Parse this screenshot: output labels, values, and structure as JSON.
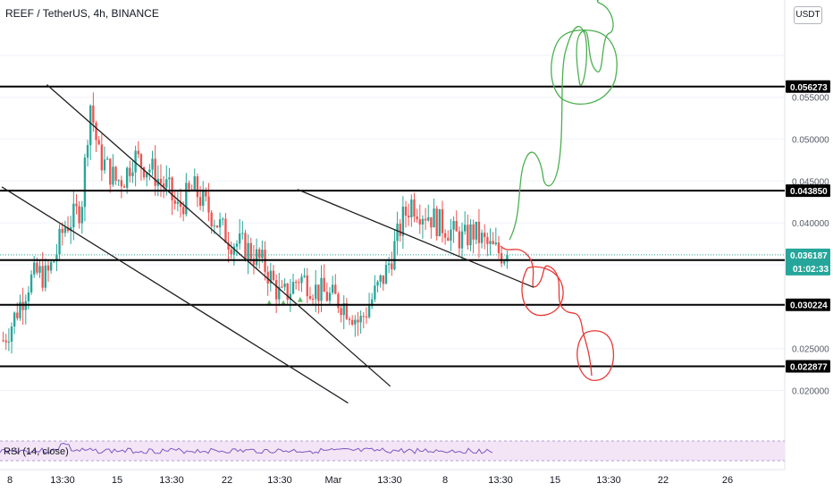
{
  "title": "REEF / TetherUS, 4h, BINANCE",
  "currency_button": "USDT",
  "rsi_label": "RSI (14, close)",
  "colors": {
    "up": "#26a69a",
    "down": "#ef5350",
    "level_line": "#000000",
    "green_drawing": "#4caf50",
    "red_drawing": "#e53935",
    "current_price": "#26a69a",
    "rsi_line": "#7e57c2",
    "rsi_band": "#f3e5f5"
  },
  "chart_data": {
    "type": "candlestick",
    "symbol": "REEF/USDT",
    "interval": "4h",
    "exchange": "BINANCE",
    "y_range": [
      0.0145,
      0.0665
    ],
    "price_axis_ticks": [
      "0.055000",
      "0.050000",
      "0.045000",
      "0.040000",
      "0.025000",
      "0.020000"
    ],
    "time_axis_ticks": [
      "8",
      "13:30",
      "15",
      "13:30",
      "22",
      "13:30",
      "Mar",
      "13:30",
      "8",
      "13:30",
      "15",
      "13:30",
      "22",
      "26"
    ],
    "horizontal_levels": [
      {
        "value": 0.056273,
        "label": "0.056273"
      },
      {
        "value": 0.04385,
        "label": "0.043850"
      },
      {
        "value": 0.035568,
        "label": "0.035568"
      },
      {
        "value": 0.030224,
        "label": "0.030224"
      },
      {
        "value": 0.022877,
        "label": "0.022877"
      }
    ],
    "current_price": {
      "value": 0.036187,
      "label": "0.036187",
      "countdown": "01:02:33"
    },
    "price_path": [
      0.026,
      0.028,
      0.0305,
      0.033,
      0.034,
      0.0335,
      0.036,
      0.0395,
      0.0405,
      0.042,
      0.0545,
      0.048,
      0.0465,
      0.045,
      0.0455,
      0.048,
      0.047,
      0.0465,
      0.045,
      0.044,
      0.0415,
      0.043,
      0.044,
      0.0425,
      0.041,
      0.0395,
      0.038,
      0.0375,
      0.037,
      0.036,
      0.035,
      0.033,
      0.031,
      0.032,
      0.0335,
      0.033,
      0.032,
      0.0315,
      0.031,
      0.0305,
      0.0295,
      0.028,
      0.03,
      0.032,
      0.034,
      0.037,
      0.0405,
      0.0425,
      0.0415,
      0.041,
      0.04,
      0.0395,
      0.0385,
      0.038,
      0.039,
      0.038,
      0.037,
      0.0365,
      0.0362
    ],
    "trend_lines": [
      {
        "name": "upper falling channel line",
        "from": [
          16,
          0.0565
        ],
        "to": [
          138,
          0.0205
        ]
      },
      {
        "name": "lower falling channel line",
        "from": [
          0,
          0.0443
        ],
        "to": [
          123,
          0.0185
        ]
      },
      {
        "name": "recent descending resistance",
        "from": [
          105,
          0.044
        ],
        "to": [
          189,
          0.0323
        ]
      }
    ],
    "annotations": [
      {
        "name": "green bullish projection",
        "color": "green"
      },
      {
        "name": "red bearish projection",
        "color": "red"
      }
    ],
    "rsi": {
      "period": 14,
      "source": "close"
    }
  }
}
